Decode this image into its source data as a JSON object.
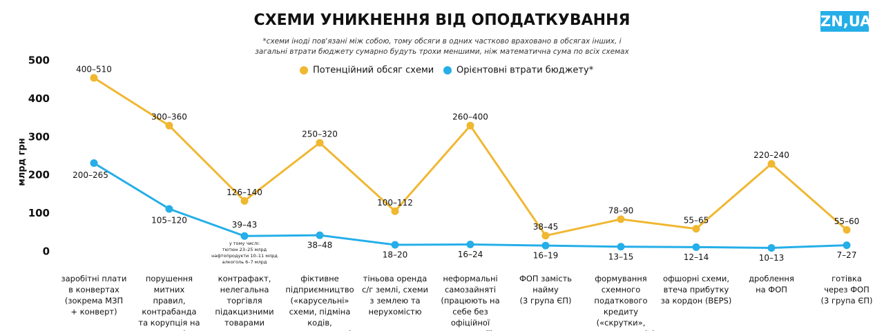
{
  "chart_data": {
    "type": "line",
    "title": "СХЕМИ УНИКНЕННЯ ВІД ОПОДАТКУВАННЯ",
    "subtitle": "*схеми іноді пов'язані між собою, тому обсяги в одних частково враховано в обсягах інших, і\nзагальні втрати бюджету сумарно будуть трохи меншими, ніж математична сума по всіх схемах",
    "logo": "ZN,UA",
    "y_label": "млрд грн",
    "annotation": "у тому числі:\nтютюн 23–25 млрд\nнафтопродукти 10–11 млрд\nалкоголь 6–7 млрд",
    "categories": [
      "заробітні плати\nв конвертах\n(зокрема МЗП\n+ конверт)",
      "порушення митних\nправил, контрабанда\nта корупція на\nкордоні",
      "контрафакт,\nнелегальна\nторгівля\nпідакцизними\nтоварами",
      "фіктивне\nпідприємництво\n(«карусельні»\nсхеми, підміна кодів,\nдропи та мули)",
      "тіньова оренда\nс/г землі, схеми\nз землею та\nнерухомістю",
      "неформальні\nсамозайняті\n(працюють на\nсебе без офіційної\nреєстрації)",
      "ФОП замість найму\n(3 група ЄП)",
      "формування\nсхемного\nподаткового\nкредиту («скрутки»,\n«накопичувачі»)",
      "офшорні схеми,\nвтеча прибутку\nза кордон (BEPS)",
      "дроблення\nна ФОП",
      "готівка\nчерез ФОП\n(3 група ЄП)"
    ],
    "series": [
      {
        "name": "Потенційний обсяг схеми",
        "color": "#f0b731",
        "values": [
          455,
          330,
          133,
          285,
          106,
          330,
          42,
          85,
          60,
          230,
          57
        ],
        "value_labels": [
          "400–510",
          "300–360",
          "126–140",
          "250–320",
          "100–112",
          "260–400",
          "38–45",
          "78–90",
          "55–65",
          "220–240",
          "55–60"
        ]
      },
      {
        "name": "Орієнтовні втрати бюджету*",
        "color": "#25aee8",
        "values": [
          232,
          112,
          41,
          43,
          18,
          19,
          16,
          13,
          12,
          10,
          17
        ],
        "value_labels": [
          "200–265",
          "105–120",
          "39–43",
          "38–48",
          "18–20",
          "16–24",
          "16–19",
          "13–15",
          "12–14",
          "10–13",
          "7–27"
        ]
      }
    ],
    "ylim": [
      0,
      500
    ],
    "yticks": [
      0,
      100,
      200,
      300,
      400,
      500
    ],
    "grid": false
  }
}
